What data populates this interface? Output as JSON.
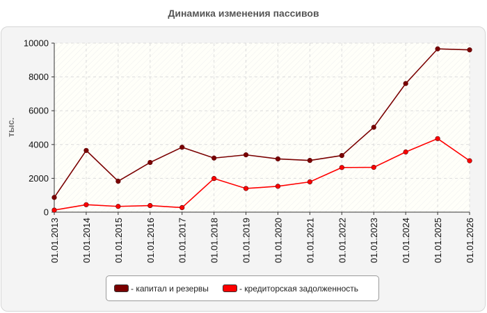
{
  "title": "Динамика изменения пассивов",
  "chart_data": {
    "type": "line",
    "title": "Динамика изменения пассивов",
    "ylabel": "тыс.",
    "xlabel": "",
    "ylim": [
      0,
      10000
    ],
    "yticks": [
      "0",
      "2000",
      "4000",
      "6000",
      "8000",
      "10000"
    ],
    "categories": [
      "01.01.2013",
      "01.01.2014",
      "01.01.2015",
      "01.01.2016",
      "01.01.2017",
      "01.01.2018",
      "01.01.2019",
      "01.01.2020",
      "01.01.2021",
      "01.01.2022",
      "01.01.2023",
      "01.01.2024",
      "01.01.2025",
      "01.01.2026"
    ],
    "grid": true,
    "legend_position": "bottom",
    "series": [
      {
        "name": "капитал и резервы",
        "color": "#7a0000",
        "values": [
          870,
          3650,
          1830,
          2940,
          3840,
          3200,
          3390,
          3150,
          3060,
          3350,
          5020,
          7610,
          9660,
          9600
        ]
      },
      {
        "name": "кредиторская задолженность",
        "color": "#ff0000",
        "values": [
          120,
          440,
          340,
          390,
          270,
          1990,
          1400,
          1530,
          1790,
          2640,
          2650,
          3560,
          4350,
          3040
        ]
      }
    ]
  },
  "legend": {
    "items": [
      {
        "label": "- капитал и резервы",
        "color": "#7a0000"
      },
      {
        "label": "- кредиторская задолженность",
        "color": "#ff0000"
      }
    ]
  }
}
